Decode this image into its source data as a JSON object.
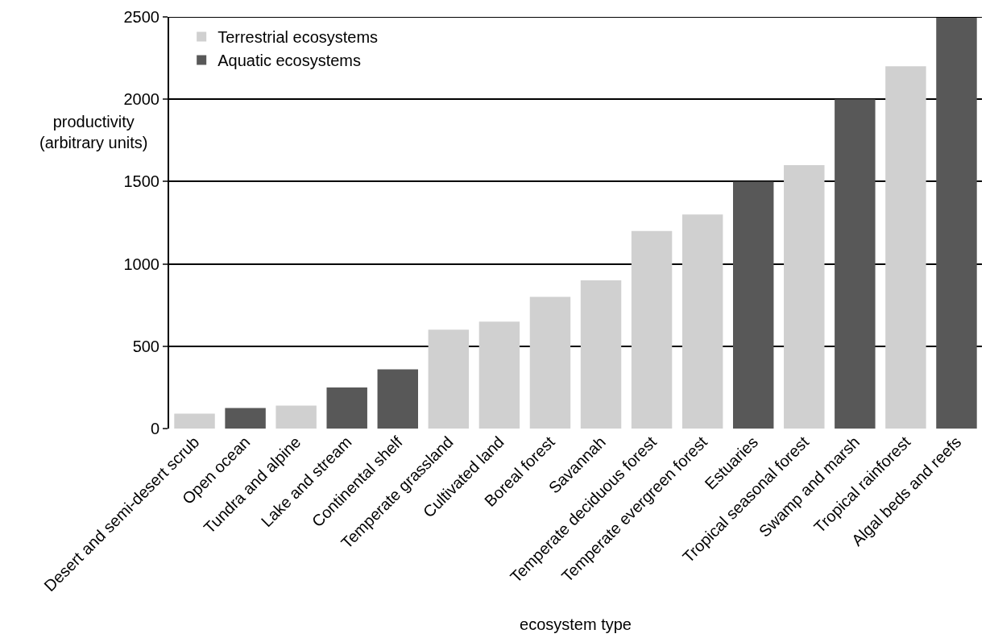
{
  "chart_data": {
    "type": "bar",
    "xlabel": "ecosystem type",
    "ylabel": "productivity\n(arbitrary units)",
    "categories": [
      "Desert and semi-desert scrub",
      "Open ocean",
      "Tundra and alpine",
      "Lake and stream",
      "Continental shelf",
      "Temperate grassland",
      "Cultivated land",
      "Boreal forest",
      "Savannah",
      "Temperate deciduous forest",
      "Temperate evergreen forest",
      "Estuaries",
      "Tropical seasonal forest",
      "Swamp and marsh",
      "Tropical rainforest",
      "Algal beds and reefs"
    ],
    "series": [
      {
        "name": "Terrestrial ecosystems",
        "color": "#d0d0d0",
        "values": [
          90,
          null,
          140,
          null,
          null,
          600,
          650,
          800,
          900,
          1200,
          1300,
          null,
          1600,
          null,
          2200,
          null
        ]
      },
      {
        "name": "Aquatic ecosystems",
        "color": "#585858",
        "values": [
          null,
          125,
          null,
          250,
          360,
          null,
          null,
          null,
          null,
          null,
          null,
          1500,
          null,
          2000,
          null,
          2500
        ]
      }
    ],
    "ylim": [
      0,
      2500
    ],
    "yticks": [
      0,
      500,
      1000,
      1500,
      2000,
      2500
    ],
    "grid": "y",
    "legend": "top left"
  }
}
